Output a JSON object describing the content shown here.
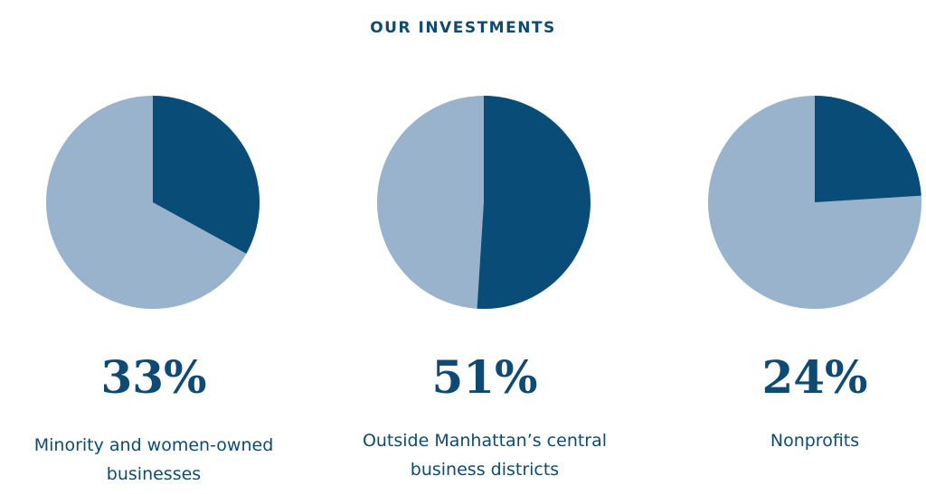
{
  "chart_data": {
    "type": "pie",
    "title": "OUR INVESTMENTS",
    "colors": {
      "highlight": "#0a4c78",
      "remainder": "#9ab3cc",
      "text": "#0e4a73"
    },
    "charts": [
      {
        "value": 33,
        "percent_label": "33%",
        "label": "Minority and women-owned businesses"
      },
      {
        "value": 51,
        "percent_label": "51%",
        "label": "Outside Manhattan’s central business districts"
      },
      {
        "value": 24,
        "percent_label": "24%",
        "label": "Nonprofits"
      }
    ]
  }
}
